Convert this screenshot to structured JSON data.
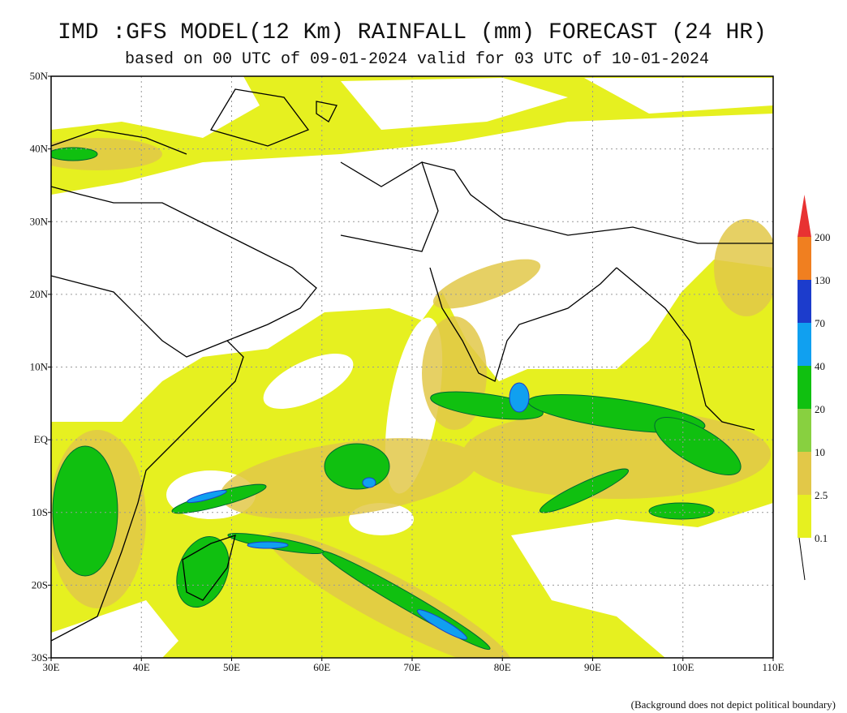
{
  "title": "IMD :GFS MODEL(12 Km) RAINFALL (mm) FORECAST (24 HR)",
  "subtitle": "based on 00 UTC of 09-01-2024 valid for 03 UTC of 10-01-2024",
  "lat_labels": [
    "50N",
    "40N",
    "30N",
    "20N",
    "10N",
    "EQ",
    "10S",
    "20S",
    "30S"
  ],
  "lon_labels": [
    "30E",
    "40E",
    "50E",
    "60E",
    "70E",
    "80E",
    "90E",
    "100E",
    "110E"
  ],
  "legend": {
    "labels": [
      "0.1",
      "2.5",
      "10",
      "20",
      "40",
      "70",
      "130",
      "200"
    ],
    "colors": [
      "#e6f020",
      "#e2c848",
      "#88d040",
      "#10c010",
      "#10a0f0",
      "#1c3ccc",
      "#f07f20",
      "#e83232"
    ]
  },
  "footnote": "(Background does not depict political boundary)"
}
